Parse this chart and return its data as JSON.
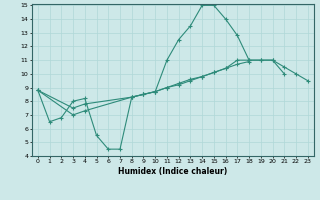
{
  "title": "",
  "xlabel": "Humidex (Indice chaleur)",
  "ylabel": "",
  "x": [
    0,
    1,
    2,
    3,
    4,
    5,
    6,
    7,
    8,
    9,
    10,
    11,
    12,
    13,
    14,
    15,
    16,
    17,
    18,
    19,
    20,
    21,
    22,
    23
  ],
  "line1": [
    8.8,
    6.5,
    6.8,
    8.0,
    8.2,
    5.5,
    4.5,
    4.5,
    8.3,
    8.5,
    8.7,
    11.0,
    12.5,
    13.5,
    15.0,
    15.0,
    14.0,
    12.8,
    11.0,
    11.0,
    11.0,
    10.0,
    null,
    null
  ],
  "line2": [
    8.8,
    null,
    null,
    7.5,
    7.8,
    null,
    null,
    null,
    8.3,
    8.5,
    8.7,
    9.0,
    9.3,
    9.6,
    9.8,
    10.1,
    10.4,
    11.0,
    11.0,
    11.0,
    11.0,
    10.5,
    10.0,
    9.5
  ],
  "line3": [
    8.8,
    null,
    null,
    7.0,
    7.3,
    null,
    null,
    null,
    8.3,
    8.5,
    8.7,
    9.0,
    9.2,
    9.5,
    9.8,
    10.1,
    10.4,
    10.7,
    10.9,
    null,
    null,
    null,
    null,
    null
  ],
  "ylim": [
    4,
    15
  ],
  "xlim": [
    -0.5,
    23.5
  ],
  "yticks": [
    4,
    5,
    6,
    7,
    8,
    9,
    10,
    11,
    12,
    13,
    14,
    15
  ],
  "xticks": [
    0,
    1,
    2,
    3,
    4,
    5,
    6,
    7,
    8,
    9,
    10,
    11,
    12,
    13,
    14,
    15,
    16,
    17,
    18,
    19,
    20,
    21,
    22,
    23
  ],
  "line_color": "#2e8b7a",
  "bg_color": "#cde8e8",
  "grid_color": "#b0d8d8"
}
